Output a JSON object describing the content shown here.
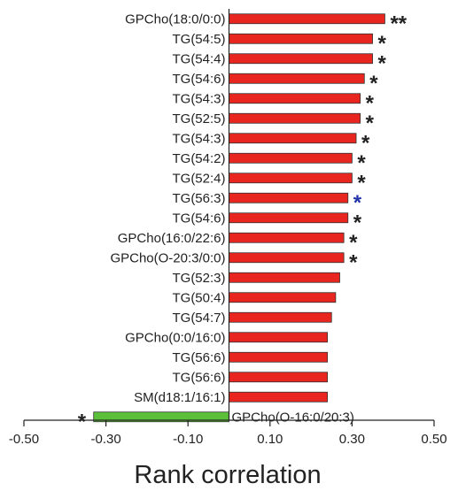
{
  "chart_data": {
    "type": "bar",
    "orientation": "horizontal",
    "xlabel": "Rank correlation",
    "xlim": [
      -0.5,
      0.5
    ],
    "xticks": [
      "-0.50",
      "-0.30",
      "-0.10",
      "0.10",
      "0.30",
      "0.50"
    ],
    "xtick_values": [
      -0.5,
      -0.3,
      -0.1,
      0.1,
      0.3,
      0.5
    ],
    "grid": false,
    "legend": "none",
    "colors": {
      "positive": "#e8261f",
      "negative": "#5cbf3a",
      "star": "#222222",
      "star_highlight": "#2233aa"
    },
    "bars": [
      {
        "label": "GPCho(18:0/0:0)",
        "value": 0.38,
        "significance": "**",
        "star_color": "#222222"
      },
      {
        "label": "TG(54:5)",
        "value": 0.35,
        "significance": "*",
        "star_color": "#222222"
      },
      {
        "label": "TG(54:4)",
        "value": 0.35,
        "significance": "*",
        "star_color": "#222222"
      },
      {
        "label": "TG(54:6)",
        "value": 0.33,
        "significance": "*",
        "star_color": "#222222"
      },
      {
        "label": "TG(54:3)",
        "value": 0.32,
        "significance": "*",
        "star_color": "#222222"
      },
      {
        "label": "TG(52:5)",
        "value": 0.32,
        "significance": "*",
        "star_color": "#222222"
      },
      {
        "label": "TG(54:3)",
        "value": 0.31,
        "significance": "*",
        "star_color": "#222222"
      },
      {
        "label": "TG(54:2)",
        "value": 0.3,
        "significance": "*",
        "star_color": "#222222"
      },
      {
        "label": "TG(52:4)",
        "value": 0.3,
        "significance": "*",
        "star_color": "#222222"
      },
      {
        "label": "TG(56:3)",
        "value": 0.29,
        "significance": "*",
        "star_color": "#2233aa"
      },
      {
        "label": "TG(54:6)",
        "value": 0.29,
        "significance": "*",
        "star_color": "#222222"
      },
      {
        "label": "GPCho(16:0/22:6)",
        "value": 0.28,
        "significance": "*",
        "star_color": "#222222"
      },
      {
        "label": "GPCho(O-20:3/0:0)",
        "value": 0.28,
        "significance": "*",
        "star_color": "#222222"
      },
      {
        "label": "TG(52:3)",
        "value": 0.27,
        "significance": "",
        "star_color": "#222222"
      },
      {
        "label": "TG(50:4)",
        "value": 0.26,
        "significance": "",
        "star_color": "#222222"
      },
      {
        "label": "TG(54:7)",
        "value": 0.25,
        "significance": "",
        "star_color": "#222222"
      },
      {
        "label": "GPCho(0:0/16:0)",
        "value": 0.24,
        "significance": "",
        "star_color": "#222222"
      },
      {
        "label": "TG(56:6)",
        "value": 0.24,
        "significance": "",
        "star_color": "#222222"
      },
      {
        "label": "TG(56:6)",
        "value": 0.24,
        "significance": "",
        "star_color": "#222222"
      },
      {
        "label": "SM(d18:1/16:1)",
        "value": 0.24,
        "significance": "",
        "star_color": "#222222"
      },
      {
        "label": "GPCho(O-16:0/20:3)",
        "value": -0.33,
        "significance": "*",
        "star_color": "#222222"
      }
    ]
  }
}
